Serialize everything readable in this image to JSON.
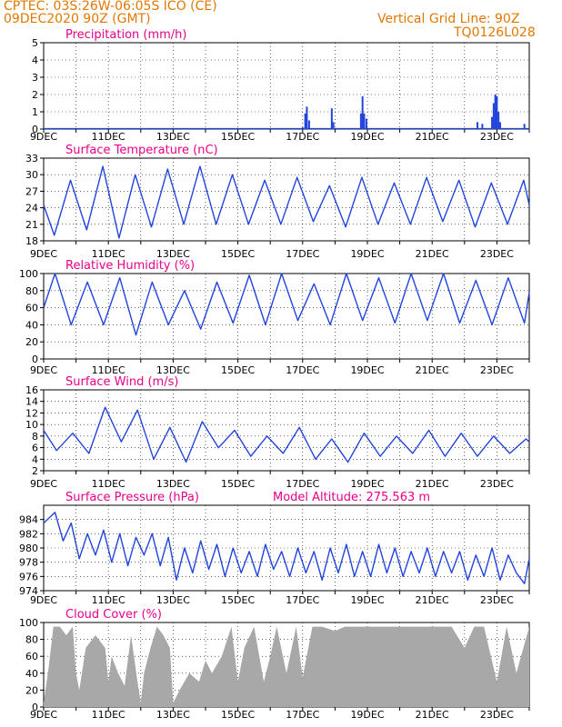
{
  "header": {
    "station": "CPTEC:   03S:26W-06:05S   ICO (CE)",
    "run": "09DEC2020 90Z (GMT)",
    "grid_line": "Vertical Grid Line: 90Z",
    "grid_id": "TQ0126L028"
  },
  "colors": {
    "header_text": "#e07800",
    "title_text": "#e8008a",
    "series": "#2244dd",
    "cloud": "#a8a8a8",
    "grid": "#000000"
  },
  "chart_data": [
    {
      "type": "bar",
      "title": "Precipitation (mm/h)",
      "x_ticks": [
        "9DEC",
        "11DEC",
        "13DEC",
        "15DEC",
        "17DEC",
        "19DEC",
        "21DEC",
        "23DEC"
      ],
      "ylim": [
        0,
        5
      ],
      "y_ticks": [
        0,
        1,
        2,
        3,
        4,
        5
      ],
      "grid": true,
      "values": [
        {
          "day": 8.0,
          "value": 0.1
        },
        {
          "day": 8.08,
          "value": 0.9
        },
        {
          "day": 8.13,
          "value": 1.3
        },
        {
          "day": 8.2,
          "value": 0.5
        },
        {
          "day": 8.9,
          "value": 1.2
        },
        {
          "day": 8.95,
          "value": 0.4
        },
        {
          "day": 9.8,
          "value": 0.9
        },
        {
          "day": 9.85,
          "value": 1.9
        },
        {
          "day": 9.9,
          "value": 0.9
        },
        {
          "day": 9.97,
          "value": 0.6
        },
        {
          "day": 13.4,
          "value": 0.4
        },
        {
          "day": 13.55,
          "value": 0.3
        },
        {
          "day": 13.85,
          "value": 0.7
        },
        {
          "day": 13.9,
          "value": 1.5
        },
        {
          "day": 13.95,
          "value": 2.0
        },
        {
          "day": 14.0,
          "value": 1.9
        },
        {
          "day": 14.05,
          "value": 1.0
        },
        {
          "day": 14.1,
          "value": 0.4
        },
        {
          "day": 14.85,
          "value": 0.3
        }
      ]
    },
    {
      "type": "line",
      "title": "Surface Temperature (nC)",
      "x_ticks": [
        "9DEC",
        "11DEC",
        "13DEC",
        "15DEC",
        "17DEC",
        "19DEC",
        "21DEC",
        "23DEC"
      ],
      "ylim": [
        18,
        33
      ],
      "y_ticks": [
        18,
        21,
        24,
        27,
        30,
        33
      ],
      "grid": true,
      "x": [
        0,
        0.33,
        0.83,
        1.33,
        1.83,
        2.33,
        2.83,
        3.33,
        3.83,
        4.33,
        4.83,
        5.33,
        5.83,
        6.33,
        6.83,
        7.33,
        7.83,
        8.33,
        8.83,
        9.33,
        9.83,
        10.33,
        10.83,
        11.33,
        11.83,
        12.33,
        12.83,
        13.33,
        13.83,
        14.33,
        14.83,
        15.0
      ],
      "y": [
        24.5,
        19,
        29,
        20,
        31.5,
        18.5,
        30,
        20.5,
        31,
        21,
        31.5,
        21,
        30,
        21,
        29,
        21,
        29.5,
        21.5,
        28,
        20.5,
        29.5,
        21,
        28.5,
        21,
        29.5,
        21.5,
        29,
        20.5,
        28.5,
        21,
        29,
        24.5
      ]
    },
    {
      "type": "line",
      "title": "Relative Humidity (%)",
      "x_ticks": [
        "9DEC",
        "11DEC",
        "13DEC",
        "15DEC",
        "17DEC",
        "19DEC",
        "21DEC",
        "23DEC"
      ],
      "ylim": [
        0,
        100
      ],
      "y_ticks": [
        0,
        20,
        40,
        60,
        80,
        100
      ],
      "grid": true,
      "x": [
        0,
        0.35,
        0.85,
        1.35,
        1.85,
        2.35,
        2.85,
        3.35,
        3.85,
        4.35,
        4.85,
        5.35,
        5.85,
        6.35,
        6.85,
        7.35,
        7.85,
        8.35,
        8.85,
        9.35,
        9.85,
        10.35,
        10.85,
        11.35,
        11.85,
        12.35,
        12.85,
        13.35,
        13.85,
        14.35,
        14.85,
        15.0
      ],
      "y": [
        60,
        100,
        40,
        90,
        40,
        95,
        28,
        90,
        40,
        80,
        35,
        90,
        42,
        98,
        40,
        100,
        45,
        88,
        40,
        100,
        45,
        95,
        42,
        100,
        45,
        100,
        42,
        92,
        40,
        95,
        42,
        78
      ]
    },
    {
      "type": "line",
      "title": "Surface Wind (m/s)",
      "x_ticks": [
        "9DEC",
        "11DEC",
        "13DEC",
        "15DEC",
        "17DEC",
        "19DEC",
        "21DEC",
        "23DEC"
      ],
      "ylim": [
        2,
        16
      ],
      "y_ticks": [
        2,
        4,
        6,
        8,
        10,
        12,
        14,
        16
      ],
      "grid": true,
      "x": [
        0,
        0.4,
        0.9,
        1.4,
        1.9,
        2.4,
        2.9,
        3.4,
        3.9,
        4.4,
        4.9,
        5.4,
        5.9,
        6.4,
        6.9,
        7.4,
        7.9,
        8.4,
        8.9,
        9.4,
        9.9,
        10.4,
        10.9,
        11.4,
        11.9,
        12.4,
        12.9,
        13.4,
        13.9,
        14.4,
        14.9,
        15.0
      ],
      "y": [
        9,
        5.5,
        8.5,
        5,
        13,
        7,
        12.5,
        4,
        9.5,
        3.5,
        10.5,
        6,
        9,
        4.5,
        8,
        5,
        9.5,
        4,
        7.5,
        3.5,
        8.5,
        4.5,
        8,
        5,
        9,
        4.5,
        8.5,
        4.5,
        8,
        5,
        7.5,
        7
      ]
    },
    {
      "type": "line",
      "title": "Surface Pressure (hPa)",
      "annotation": "Model Altitude: 275.563  m",
      "x_ticks": [
        "9DEC",
        "11DEC",
        "13DEC",
        "15DEC",
        "17DEC",
        "19DEC",
        "21DEC",
        "23DEC"
      ],
      "ylim": [
        974,
        986
      ],
      "y_ticks": [
        974,
        976,
        978,
        980,
        982,
        984
      ],
      "grid": true,
      "x": [
        0,
        0.35,
        0.6,
        0.85,
        1.1,
        1.35,
        1.6,
        1.85,
        2.1,
        2.35,
        2.6,
        2.85,
        3.1,
        3.35,
        3.6,
        3.85,
        4.1,
        4.35,
        4.6,
        4.85,
        5.1,
        5.35,
        5.6,
        5.85,
        6.1,
        6.35,
        6.6,
        6.85,
        7.1,
        7.35,
        7.6,
        7.85,
        8.1,
        8.35,
        8.6,
        8.85,
        9.1,
        9.35,
        9.6,
        9.85,
        10.1,
        10.35,
        10.6,
        10.85,
        11.1,
        11.35,
        11.6,
        11.85,
        12.1,
        12.35,
        12.6,
        12.85,
        13.1,
        13.35,
        13.6,
        13.85,
        14.1,
        14.35,
        14.6,
        14.85,
        15.0
      ],
      "y": [
        983.5,
        985,
        981,
        983.5,
        978.5,
        982,
        979,
        982.5,
        978,
        982,
        977.5,
        981.5,
        979,
        982,
        977.5,
        981.5,
        975.5,
        980,
        976.5,
        981,
        977,
        980.5,
        976,
        980,
        976.5,
        979.5,
        976,
        980.5,
        977,
        979.5,
        976,
        980,
        976.5,
        979.5,
        975.5,
        980,
        976.5,
        980.5,
        976,
        979.5,
        976,
        980.5,
        976.5,
        980,
        976,
        979.5,
        976.5,
        980,
        976,
        979.5,
        976.5,
        979.5,
        975.5,
        979,
        976,
        980,
        975.5,
        979,
        976.5,
        975,
        978.5
      ]
    },
    {
      "type": "area",
      "title": "Cloud Cover (%)",
      "x_ticks": [
        "9DEC",
        "11DEC",
        "13DEC",
        "15DEC",
        "17DEC",
        "19DEC",
        "21DEC",
        "23DEC"
      ],
      "ylim": [
        0,
        100
      ],
      "y_ticks": [
        0,
        20,
        40,
        60,
        80,
        100
      ],
      "grid": true,
      "x": [
        0,
        0.15,
        0.3,
        0.5,
        0.7,
        0.9,
        1.0,
        1.1,
        1.3,
        1.6,
        1.9,
        2.0,
        2.1,
        2.3,
        2.5,
        2.7,
        2.9,
        3.0,
        3.1,
        3.3,
        3.5,
        3.7,
        3.9,
        4.0,
        4.2,
        4.5,
        4.8,
        5.0,
        5.2,
        5.5,
        5.8,
        6.0,
        6.2,
        6.5,
        6.8,
        7.0,
        7.2,
        7.5,
        7.8,
        8.0,
        8.3,
        8.6,
        9.0,
        9.3,
        9.6,
        10.0,
        10.3,
        10.6,
        11.0,
        11.3,
        11.6,
        12.0,
        12.3,
        12.6,
        13.0,
        13.3,
        13.6,
        14.0,
        14.3,
        14.6,
        15.0
      ],
      "y": [
        5,
        45,
        95,
        95,
        85,
        95,
        40,
        20,
        70,
        85,
        70,
        30,
        60,
        40,
        25,
        85,
        30,
        5,
        40,
        70,
        95,
        85,
        70,
        5,
        20,
        40,
        30,
        55,
        40,
        60,
        95,
        30,
        70,
        95,
        30,
        60,
        95,
        40,
        95,
        35,
        95,
        95,
        90,
        95,
        95,
        95,
        95,
        95,
        95,
        95,
        95,
        95,
        95,
        95,
        70,
        95,
        95,
        30,
        95,
        40,
        95
      ]
    }
  ]
}
